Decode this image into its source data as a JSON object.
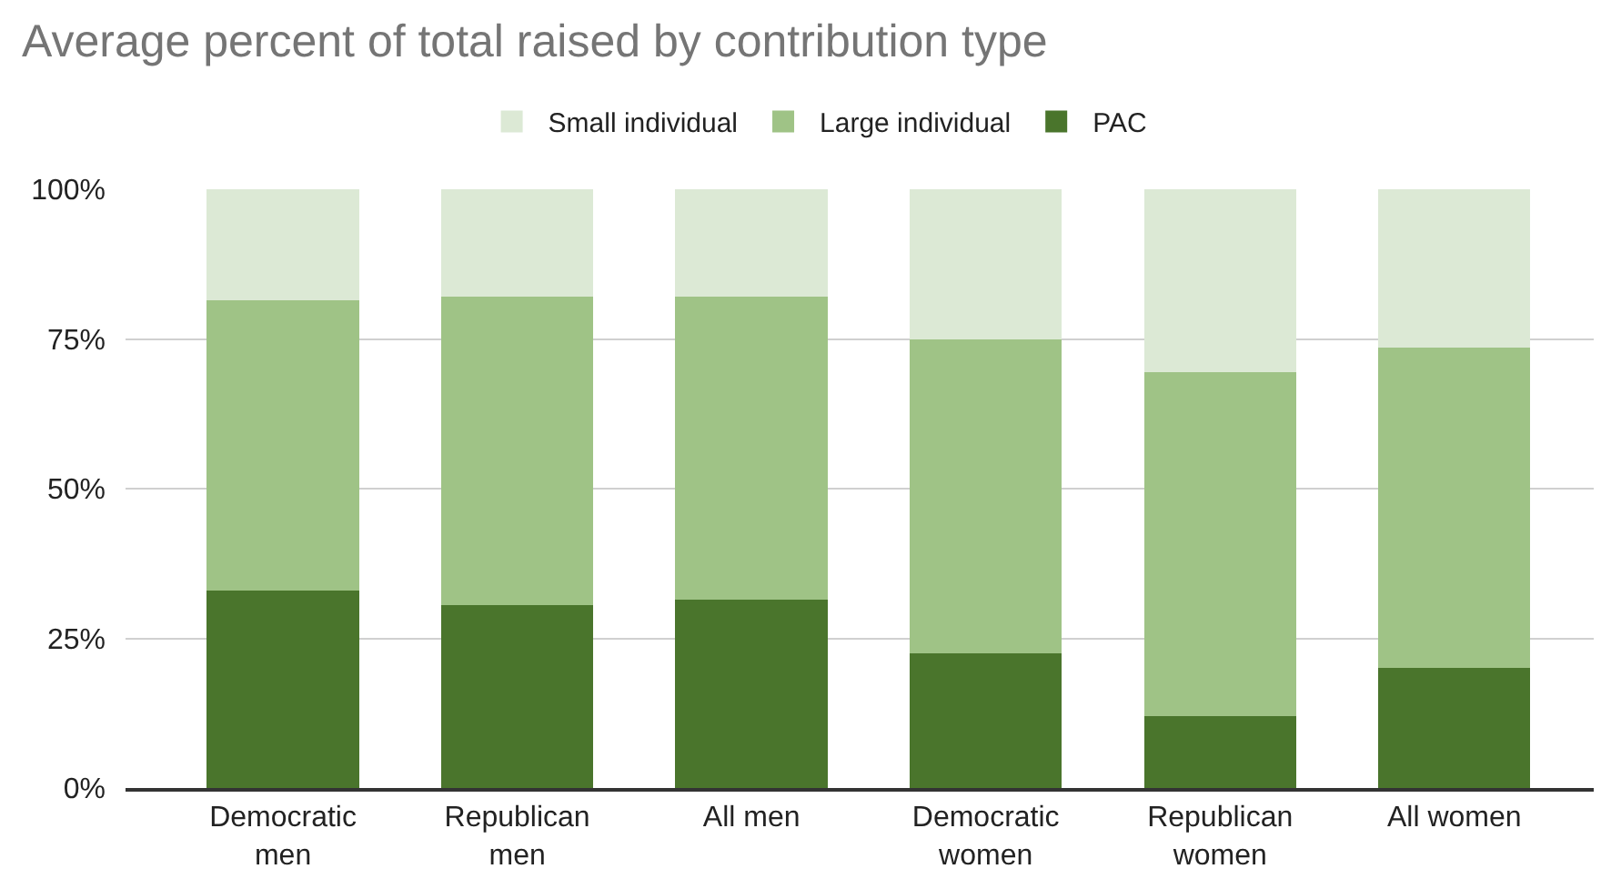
{
  "chart_data": {
    "type": "bar",
    "title": "Average percent of total raised by contribution type",
    "categories": [
      "Democratic men",
      "Republican men",
      "All men",
      "Democratic women",
      "Republican women",
      "All women"
    ],
    "stacked": true,
    "series": [
      {
        "name": "PAC",
        "color": "#4a752c",
        "values": [
          33,
          30.5,
          31.5,
          22.5,
          12,
          20
        ]
      },
      {
        "name": "Large individual",
        "color": "#9fc386",
        "values": [
          48.5,
          51.5,
          50.5,
          52.5,
          57.5,
          53.5
        ]
      },
      {
        "name": "Small individual",
        "color": "#dce9d5",
        "values": [
          18.5,
          18,
          18,
          25,
          30.5,
          26.5
        ]
      }
    ],
    "ylim": [
      0,
      100
    ],
    "yticks": [
      {
        "value": 0,
        "label": "0%"
      },
      {
        "value": 25,
        "label": "25%"
      },
      {
        "value": 50,
        "label": "50%"
      },
      {
        "value": 75,
        "label": "75%"
      },
      {
        "value": 100,
        "label": "100%"
      }
    ],
    "grid": "y",
    "legend": "top"
  }
}
